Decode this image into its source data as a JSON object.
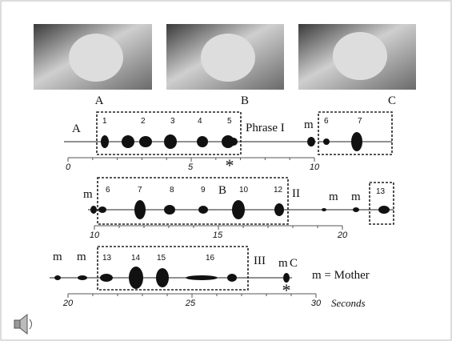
{
  "photos": {
    "labels": [
      "A",
      "B",
      "C"
    ]
  },
  "rows": [
    {
      "label": "A",
      "segments": [
        1,
        2,
        3,
        4,
        5
      ],
      "phrase": "Phrase I",
      "mother": "m",
      "next_segments": [
        6,
        7
      ],
      "ticks": [
        0,
        5,
        10
      ],
      "marker": "*"
    },
    {
      "mother": "m",
      "segments": [
        6,
        7,
        8,
        9,
        10,
        12
      ],
      "label": "B",
      "phrase": "II",
      "mothers_after": [
        "m",
        "m"
      ],
      "next_segments": [
        13
      ],
      "ticks": [
        10,
        15,
        20
      ]
    },
    {
      "mothers_before": [
        "m",
        "m"
      ],
      "segments": [
        13,
        14,
        15,
        16
      ],
      "phrase": "III",
      "mother": "m",
      "label": "C",
      "ticks": [
        20,
        25,
        30
      ],
      "unit": "Seconds",
      "marker": "*"
    }
  ],
  "legend": "m = Mother"
}
